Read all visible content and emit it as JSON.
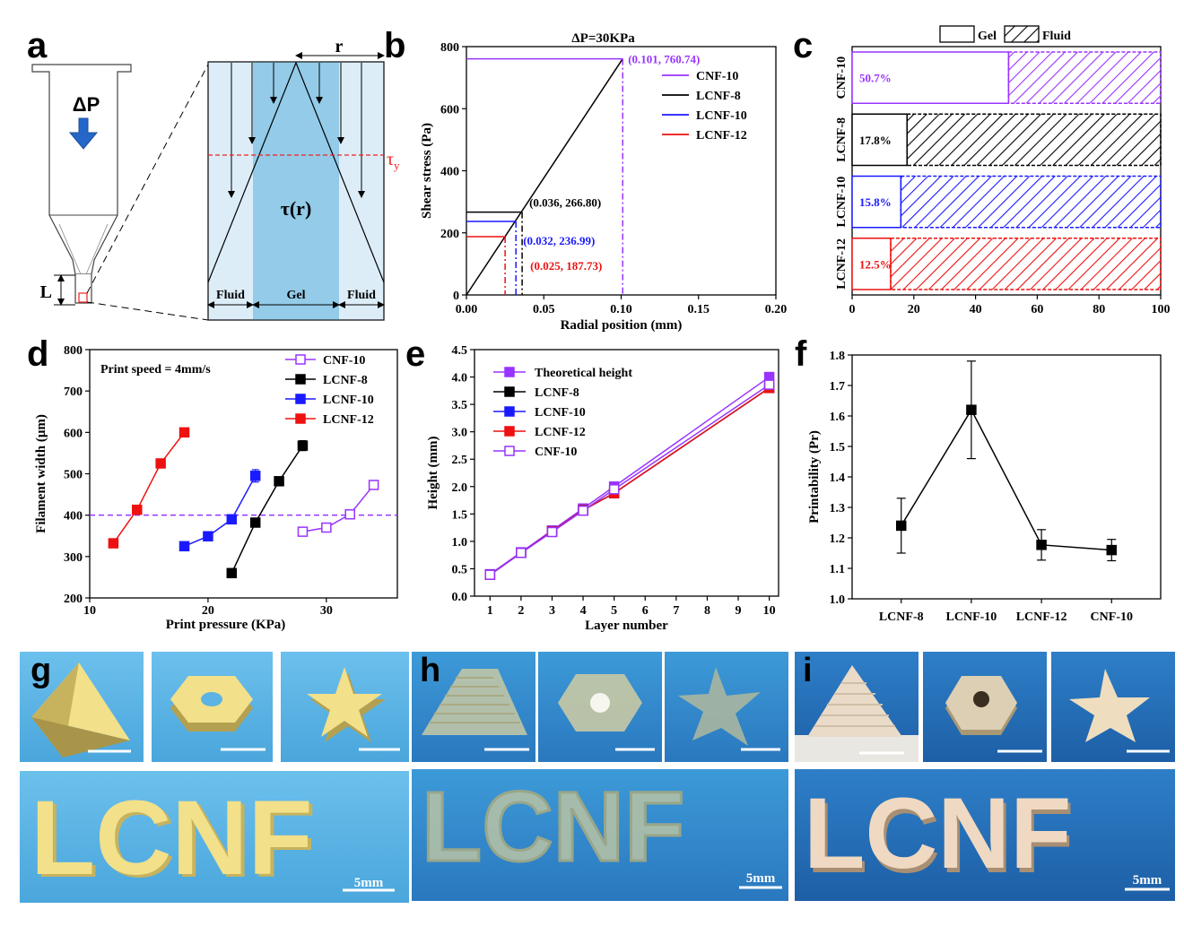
{
  "panels": {
    "a": {
      "letter": "a",
      "delta_p": "ΔP",
      "radius": "r",
      "tau_y": "τ",
      "tau_y_sub": "y",
      "tau_r": "τ(r)",
      "length": "L",
      "zones": [
        "Fluid",
        "Gel",
        "Fluid"
      ]
    },
    "b": {
      "letter": "b"
    },
    "c": {
      "letter": "c"
    },
    "d": {
      "letter": "d"
    },
    "e": {
      "letter": "e"
    },
    "f": {
      "letter": "f"
    },
    "g": {
      "letter": "g",
      "scale": "5mm"
    },
    "h": {
      "letter": "h",
      "scale": "5mm"
    },
    "i": {
      "letter": "i",
      "scale": "5mm"
    },
    "photo_text": "LCNF"
  },
  "colors": {
    "CNF-10": "#9933ff",
    "LCNF-8": "#000000",
    "LCNF-10": "#1a1aff",
    "LCNF-12": "#ee1111",
    "theory": "#9933ff",
    "sky": "#5cb3e4",
    "model_yellow": "#f2e08a"
  },
  "chart_data": [
    {
      "id": "b",
      "type": "line",
      "title": "ΔP=30KPa",
      "xlabel": "Radial position (mm)",
      "ylabel": "Shear stress (Pa)",
      "xlim": [
        0,
        0.2
      ],
      "ylim": [
        0,
        800
      ],
      "xticks": [
        "0.00",
        "0.05",
        "0.10",
        "0.15",
        "0.20"
      ],
      "yticks": [
        "0",
        "200",
        "400",
        "600",
        "800"
      ],
      "line": [
        [
          0,
          0
        ],
        [
          0.101,
          760.74
        ]
      ],
      "series": [
        {
          "name": "CNF-10",
          "x": 0.101,
          "y": 760.74,
          "label": "(0.101, 760.74)"
        },
        {
          "name": "LCNF-8",
          "x": 0.036,
          "y": 266.8,
          "label": "(0.036, 266.80)"
        },
        {
          "name": "LCNF-10",
          "x": 0.032,
          "y": 236.99,
          "label": "(0.032, 236.99)"
        },
        {
          "name": "LCNF-12",
          "x": 0.025,
          "y": 187.73,
          "label": "(0.025, 187.73)"
        }
      ]
    },
    {
      "id": "c",
      "type": "bar",
      "orientation": "horizontal",
      "legend": [
        "Gel",
        "Fluid"
      ],
      "xlim": [
        0,
        100
      ],
      "xticks": [
        "0",
        "20",
        "40",
        "60",
        "80",
        "100"
      ],
      "categories": [
        "CNF-10",
        "LCNF-8",
        "LCNF-10",
        "LCNF-12"
      ],
      "gel_values": [
        50.7,
        17.8,
        15.8,
        12.5
      ],
      "labels": [
        "50.7%",
        "17.8%",
        "15.8%",
        "12.5%"
      ]
    },
    {
      "id": "d",
      "type": "line",
      "annotation": "Print speed = 4mm/s",
      "xlabel": "Print pressure (KPa)",
      "ylabel": "Filament width (μm)",
      "xlim": [
        10,
        36
      ],
      "ylim": [
        200,
        800
      ],
      "xticks": [
        "10",
        "20",
        "30"
      ],
      "yticks": [
        "200",
        "300",
        "400",
        "500",
        "600",
        "700",
        "800"
      ],
      "reference_line": 400,
      "series": [
        {
          "name": "CNF-10",
          "x": [
            28,
            30,
            32,
            34
          ],
          "y": [
            360,
            370,
            402,
            473
          ],
          "err": [
            8,
            6,
            5,
            8
          ]
        },
        {
          "name": "LCNF-8",
          "x": [
            22,
            24,
            26,
            28
          ],
          "y": [
            260,
            382,
            482,
            568
          ],
          "err": [
            10,
            8,
            8,
            12
          ]
        },
        {
          "name": "LCNF-10",
          "x": [
            18,
            20,
            22,
            24
          ],
          "y": [
            325,
            349,
            390,
            495
          ],
          "err": [
            5,
            5,
            6,
            15
          ]
        },
        {
          "name": "LCNF-12",
          "x": [
            12,
            14,
            16,
            18
          ],
          "y": [
            332,
            413,
            525,
            600
          ],
          "err": [
            8,
            8,
            10,
            6
          ]
        }
      ]
    },
    {
      "id": "e",
      "type": "line",
      "xlabel": "Layer number",
      "ylabel": "Height (mm)",
      "xlim": [
        0.5,
        10.3
      ],
      "ylim": [
        0,
        4.5
      ],
      "xticks": [
        "1",
        "2",
        "3",
        "4",
        "5",
        "6",
        "7",
        "8",
        "9",
        "10"
      ],
      "yticks": [
        "0.0",
        "0.5",
        "1.0",
        "1.5",
        "2.0",
        "2.5",
        "3.0",
        "3.5",
        "4.0",
        "4.5"
      ],
      "series": [
        {
          "name": "Theoretical height",
          "x": [
            1,
            2,
            3,
            4,
            5,
            10
          ],
          "y": [
            0.4,
            0.8,
            1.2,
            1.6,
            2.0,
            4.0
          ]
        },
        {
          "name": "LCNF-8",
          "x": [
            1,
            2,
            3,
            4,
            5,
            10
          ],
          "y": [
            0.39,
            0.79,
            1.18,
            1.57,
            1.88,
            3.8
          ]
        },
        {
          "name": "LCNF-10",
          "x": [
            1,
            2,
            3,
            4,
            5,
            10
          ],
          "y": [
            0.39,
            0.79,
            1.18,
            1.57,
            1.88,
            3.8
          ]
        },
        {
          "name": "LCNF-12",
          "x": [
            1,
            2,
            3,
            4,
            5,
            10
          ],
          "y": [
            0.39,
            0.79,
            1.18,
            1.57,
            1.88,
            3.8
          ]
        },
        {
          "name": "CNF-10",
          "x": [
            1,
            2,
            3,
            4,
            5,
            10
          ],
          "y": [
            0.39,
            0.79,
            1.17,
            1.56,
            1.95,
            3.86
          ]
        }
      ]
    },
    {
      "id": "f",
      "type": "line",
      "xlabel": "",
      "ylabel": "Printability (Pr)",
      "ylim": [
        1.0,
        1.8
      ],
      "yticks": [
        "1.0",
        "1.1",
        "1.2",
        "1.3",
        "1.4",
        "1.5",
        "1.6",
        "1.7",
        "1.8"
      ],
      "categories": [
        "LCNF-8",
        "LCNF-10",
        "LCNF-12",
        "CNF-10"
      ],
      "values": [
        1.24,
        1.62,
        1.177,
        1.16
      ],
      "err": [
        0.09,
        0.16,
        0.05,
        0.035
      ]
    }
  ]
}
